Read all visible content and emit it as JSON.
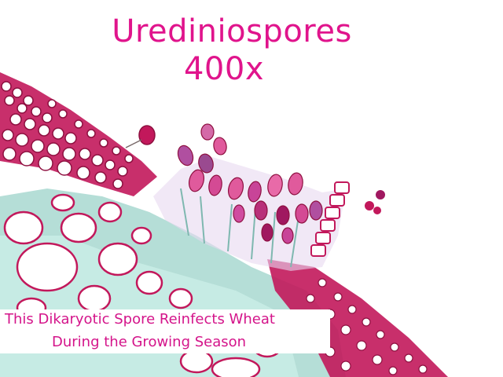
{
  "title": {
    "line1": "Urediniospores",
    "line2": "400x"
  },
  "caption": {
    "line1": "This Dikaryotic Spore Reinfects Wheat",
    "line2": "During the Growing Season"
  },
  "colors": {
    "title_text": "#e0148c",
    "caption_text": "#d4148a",
    "cell_wall": "#c2185b",
    "cell_wall_dark": "#8e1040",
    "spore_pink": "#e05a9c",
    "spore_purple": "#b04fa0",
    "spore_dark": "#a01860",
    "tissue_teal": "#a8d8d0",
    "background": "#ffffff"
  }
}
